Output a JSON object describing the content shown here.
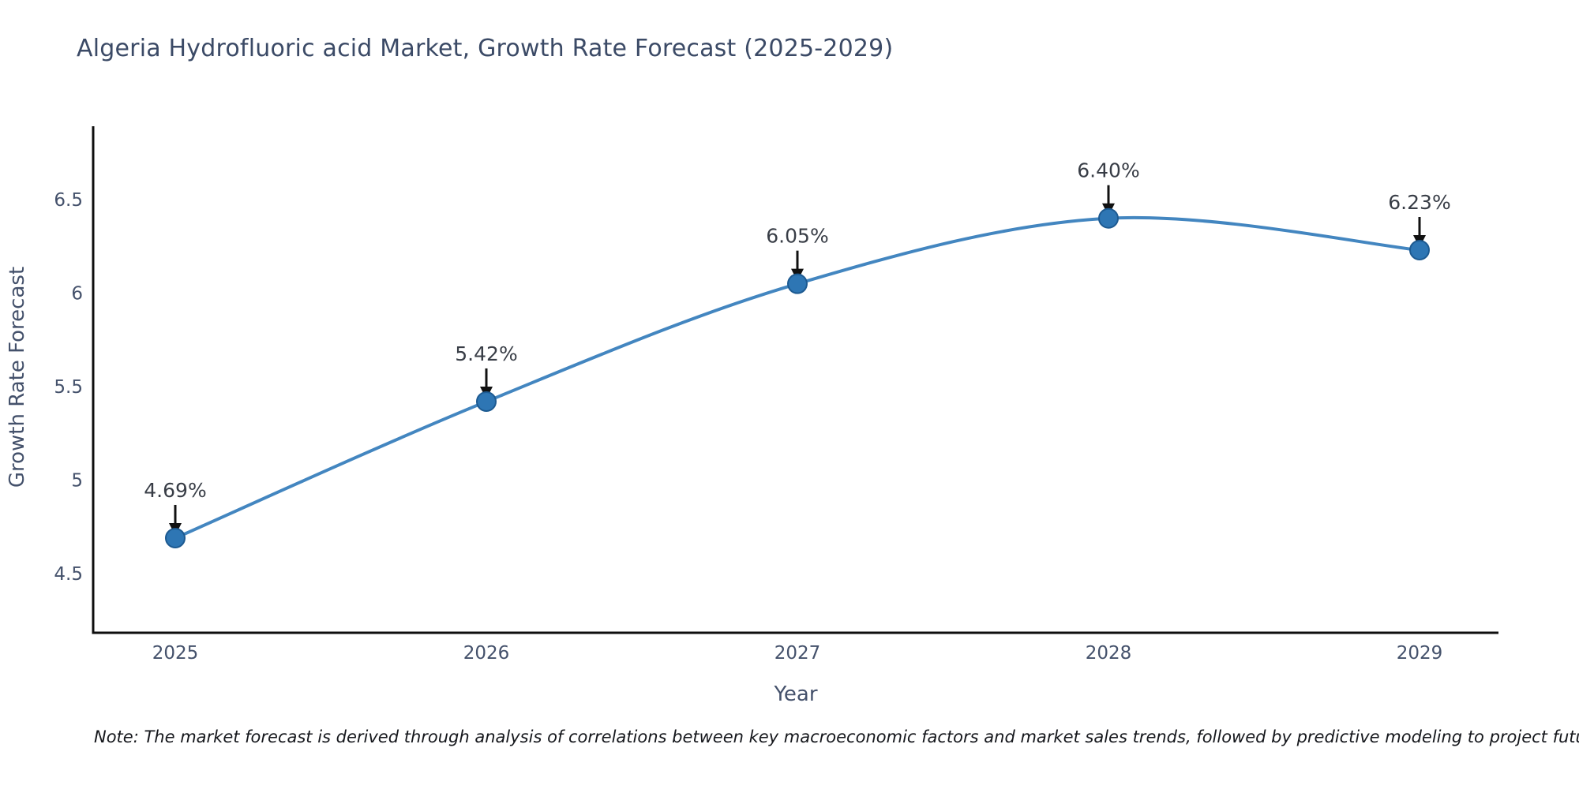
{
  "chart": {
    "title": "Algeria Hydrofluoric acid Market, Growth Rate Forecast (2025-2029)",
    "xlabel": "Year",
    "ylabel": "Growth Rate Forecast",
    "note": "Note: The market forecast is derived through analysis of correlations between key macroeconomic factors and market sales trends, followed by predictive modeling to project future sales",
    "colors": {
      "line": "#4386c0",
      "marker_fill": "#2e76b4",
      "marker_edge": "#1d5a91",
      "axis": "#0e0e0e",
      "arrow": "#111111",
      "title_text": "#3b4a66",
      "tick_text": "#44516b",
      "annotation_text": "#383d46",
      "background": "#ffffff"
    }
  },
  "chart_data": {
    "type": "line",
    "title": "Algeria Hydrofluoric acid Market, Growth Rate Forecast (2025-2029)",
    "xlabel": "Year",
    "ylabel": "Growth Rate Forecast",
    "x": [
      2025,
      2026,
      2027,
      2028,
      2029
    ],
    "series": [
      {
        "name": "Growth Rate Forecast",
        "values": [
          4.69,
          5.42,
          6.05,
          6.4,
          6.23
        ]
      }
    ],
    "point_labels": [
      "4.69%",
      "5.42%",
      "6.05%",
      "6.40%",
      "6.23%"
    ],
    "yticks": [
      4.5,
      5,
      5.5,
      6,
      6.5
    ],
    "ylim": [
      4.18,
      6.9
    ],
    "grid": false,
    "legend": "none",
    "line_shape": "spline",
    "annotations": "value labels with downward arrows above each point"
  }
}
